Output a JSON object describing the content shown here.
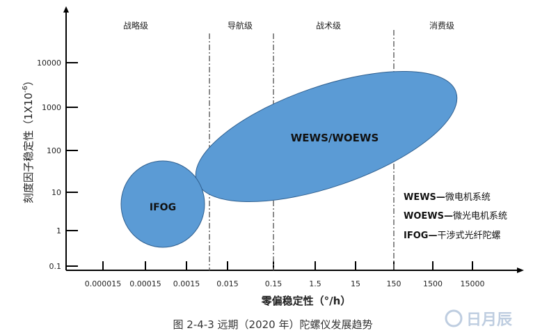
{
  "chart_data": {
    "type": "diagram",
    "ylabel": "刻度因子稳定性（1X10⁻⁶）",
    "ylabel_main": "刻度因子稳定性（1X10",
    "ylabel_sup": "-6",
    "ylabel_close": "）",
    "xlabel": "零偏稳定性（°/h）",
    "y_ticks": [
      "0.1",
      "1",
      "10",
      "100",
      "1000",
      "10000"
    ],
    "x_ticks": [
      "0.000015",
      "0.00015",
      "0.0015",
      "0.015",
      "0.15",
      "1.5",
      "15",
      "150",
      "1500",
      "15000"
    ],
    "regions": [
      {
        "label": "战略级"
      },
      {
        "label": "导航级",
        "boundary": "0.0015–0.015"
      },
      {
        "label": "战术级",
        "boundary": "0.15"
      },
      {
        "label": "消费级",
        "boundary": "150"
      }
    ],
    "shapes": [
      {
        "label": "IFOG",
        "color": "#5b9bd5"
      },
      {
        "label": "WEWS/WOEWS",
        "color": "#5b9bd5"
      }
    ],
    "legend": [
      {
        "key": "WEWS",
        "sep": "—",
        "desc": "微电机系统"
      },
      {
        "key": "WOEWS",
        "sep": "—",
        "desc": "微光电机系统"
      },
      {
        "key": "IFOG",
        "sep": "—",
        "desc": "干涉式光纤陀螺"
      }
    ],
    "caption": "图 2-4-3   远期（2020 年）陀螺仪发展趋势"
  },
  "watermark": "日月辰"
}
